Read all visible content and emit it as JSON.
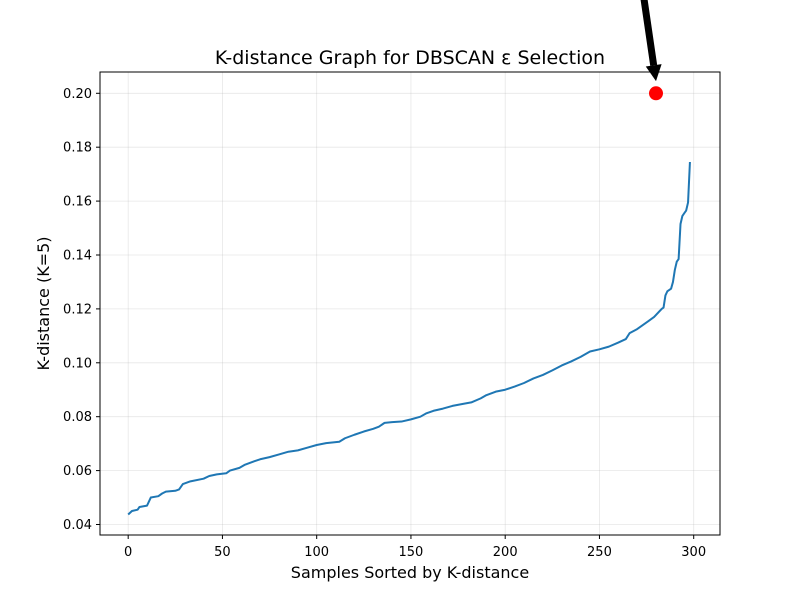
{
  "chart_data": {
    "type": "line",
    "title": "K-distance Graph for DBSCAN ε Selection",
    "xlabel": "Samples Sorted by K-distance",
    "ylabel": "K-distance (K=5)",
    "xlim": [
      -14.95,
      313.95
    ],
    "ylim": [
      0.0361,
      0.2079
    ],
    "xticks": [
      0,
      50,
      100,
      150,
      200,
      250,
      300
    ],
    "yticks": [
      0.04,
      0.06,
      0.08,
      0.1,
      0.12,
      0.14,
      0.16,
      0.18,
      0.2
    ],
    "xtick_labels": [
      "0",
      "50",
      "100",
      "150",
      "200",
      "250",
      "300"
    ],
    "ytick_labels": [
      "0.04",
      "0.06",
      "0.08",
      "0.10",
      "0.12",
      "0.14",
      "0.16",
      "0.18",
      "0.20"
    ],
    "grid": true,
    "series": [
      {
        "color": "#1f77b4",
        "points": [
          [
            0,
            0.0437
          ],
          [
            2,
            0.045
          ],
          [
            5,
            0.0455
          ],
          [
            6,
            0.0465
          ],
          [
            10,
            0.047
          ],
          [
            11,
            0.0485
          ],
          [
            12,
            0.05
          ],
          [
            16,
            0.0505
          ],
          [
            18,
            0.0515
          ],
          [
            20,
            0.0522
          ],
          [
            25,
            0.0525
          ],
          [
            27,
            0.053
          ],
          [
            29,
            0.055
          ],
          [
            33,
            0.056
          ],
          [
            40,
            0.057
          ],
          [
            43,
            0.058
          ],
          [
            47,
            0.0586
          ],
          [
            52,
            0.059
          ],
          [
            54,
            0.06
          ],
          [
            59,
            0.061
          ],
          [
            62,
            0.0622
          ],
          [
            67,
            0.0635
          ],
          [
            70,
            0.0642
          ],
          [
            75,
            0.065
          ],
          [
            80,
            0.066
          ],
          [
            85,
            0.067
          ],
          [
            90,
            0.0675
          ],
          [
            95,
            0.0685
          ],
          [
            100,
            0.0695
          ],
          [
            105,
            0.0702
          ],
          [
            112,
            0.0707
          ],
          [
            115,
            0.072
          ],
          [
            120,
            0.0733
          ],
          [
            125,
            0.0745
          ],
          [
            130,
            0.0755
          ],
          [
            133,
            0.0763
          ],
          [
            136,
            0.0777
          ],
          [
            140,
            0.078
          ],
          [
            145,
            0.0782
          ],
          [
            150,
            0.079
          ],
          [
            155,
            0.08
          ],
          [
            158,
            0.0812
          ],
          [
            162,
            0.0822
          ],
          [
            167,
            0.083
          ],
          [
            172,
            0.084
          ],
          [
            178,
            0.0848
          ],
          [
            182,
            0.0853
          ],
          [
            187,
            0.0868
          ],
          [
            190,
            0.088
          ],
          [
            195,
            0.0893
          ],
          [
            200,
            0.09
          ],
          [
            205,
            0.0912
          ],
          [
            210,
            0.0925
          ],
          [
            215,
            0.0942
          ],
          [
            220,
            0.0955
          ],
          [
            225,
            0.0972
          ],
          [
            230,
            0.099
          ],
          [
            235,
            0.1005
          ],
          [
            240,
            0.1022
          ],
          [
            245,
            0.1042
          ],
          [
            250,
            0.105
          ],
          [
            255,
            0.106
          ],
          [
            260,
            0.1075
          ],
          [
            264,
            0.1088
          ],
          [
            266,
            0.111
          ],
          [
            270,
            0.1125
          ],
          [
            273,
            0.114
          ],
          [
            276,
            0.1155
          ],
          [
            279,
            0.117
          ],
          [
            281,
            0.1185
          ],
          [
            283,
            0.12
          ],
          [
            284,
            0.1205
          ],
          [
            285,
            0.125
          ],
          [
            286,
            0.1265
          ],
          [
            288,
            0.1275
          ],
          [
            289,
            0.13
          ],
          [
            290,
            0.1345
          ],
          [
            291,
            0.1375
          ],
          [
            292,
            0.1385
          ],
          [
            293,
            0.1515
          ],
          [
            294,
            0.1545
          ],
          [
            295,
            0.1555
          ],
          [
            296,
            0.1565
          ],
          [
            297,
            0.1595
          ],
          [
            298,
            0.1745
          ]
        ]
      }
    ],
    "highlight_point": {
      "x": 280,
      "y": 0.2,
      "color": "#ff0000"
    },
    "annotation_arrow": {
      "from": [
        273,
        0.238
      ],
      "to": [
        280,
        0.2045
      ],
      "color": "#000000"
    }
  }
}
